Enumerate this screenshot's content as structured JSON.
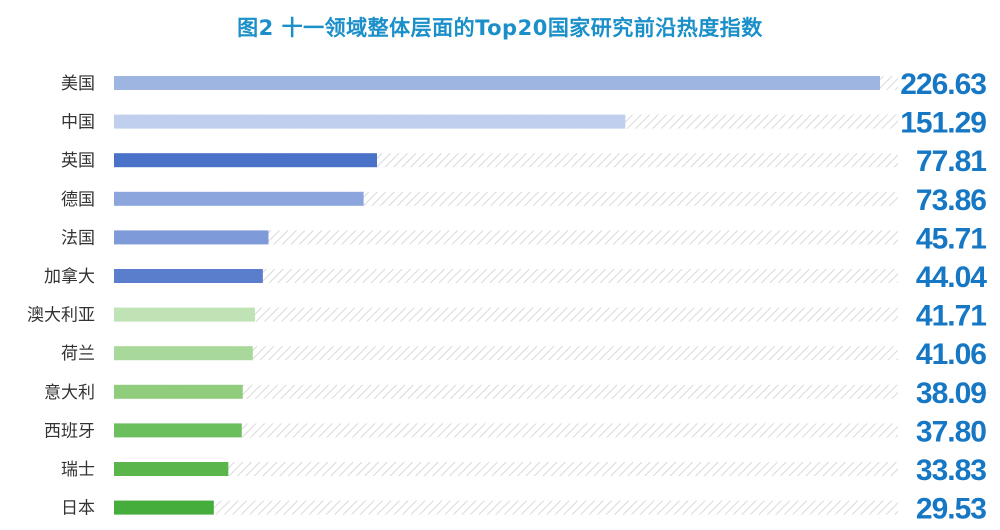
{
  "chart_data": {
    "type": "bar",
    "orientation": "horizontal",
    "title": "图2  十一领域整体层面的Top20国家研究前沿热度指数",
    "categories": [
      "美国",
      "中国",
      "英国",
      "德国",
      "法国",
      "加拿大",
      "澳大利亚",
      "荷兰",
      "意大利",
      "西班牙",
      "瑞士",
      "日本"
    ],
    "values": [
      226.63,
      151.29,
      77.81,
      73.86,
      45.71,
      44.04,
      41.71,
      41.06,
      38.09,
      37.8,
      33.83,
      29.53
    ],
    "value_labels": [
      "226.63",
      "151.29",
      "77.81",
      "73.86",
      "45.71",
      "44.04",
      "41.71",
      "41.06",
      "38.09",
      "37.80",
      "33.83",
      "29.53"
    ],
    "xlim": [
      0,
      226.63
    ],
    "colors": [
      "#9fb5e1",
      "#c1cfee",
      "#4a72c8",
      "#8ca6dd",
      "#7f9ad8",
      "#5a7ecc",
      "#bfe3b4",
      "#a9d89b",
      "#8fcd7c",
      "#6cbf5d",
      "#5ab64b",
      "#45ad3b"
    ],
    "hatch_color": "#d9d9d9",
    "value_color": "#1677c4"
  }
}
